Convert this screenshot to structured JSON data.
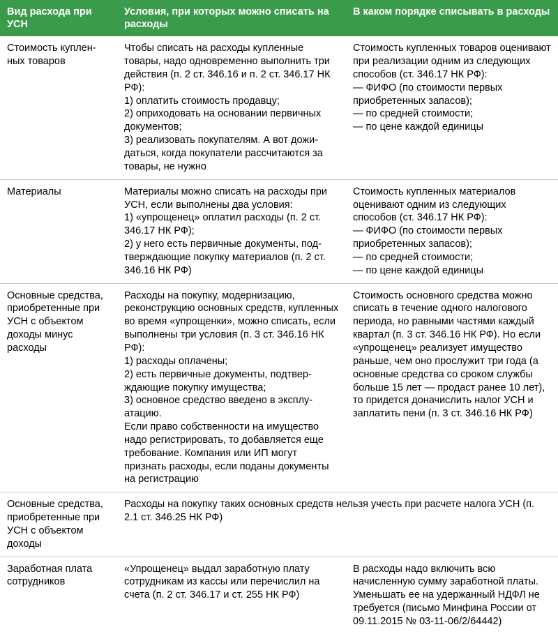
{
  "table": {
    "header_bg": "#3a9b4a",
    "header_color": "#ffffff",
    "border_color": "#c8c8c8",
    "text_color": "#000000",
    "font_size": 14.5,
    "columns": [
      {
        "label": "Вид расхода при УСН",
        "width": "21%"
      },
      {
        "label": "Условия, при которых можно списать на расходы",
        "width": "41%"
      },
      {
        "label": "В каком порядке списывать в расходы",
        "width": "38%"
      }
    ],
    "rows": [
      {
        "c1": "Стоимость куплен­ных товаров",
        "c2": "Чтобы списать на расходы купленные товары, надо одновременно выпол­нить три действия (п. 2 ст. 346.16 и п. 2 ст. 346.17 НК РФ):\n1) оплатить стоимость продавцу;\n2) оприходовать на основании первичных документов;\n3) реализовать покупателям. А вот дожи­даться, когда покупатели рассчитаются за товары, не нужно",
        "c3": "Стоимость купленных товаров оценивают при реализации одним из следующих способов (ст. 346.17 НК РФ):\n— ФИФО (по стоимости первых приобретенных запасов);\n— по средней стоимости;\n— по цене каждой единицы"
      },
      {
        "c1": "Материалы",
        "c2": "Материалы можно списать на расходы при УСН, если выполнены два условия:\n1) «упрощенец» оплатил расходы (п. 2 ст. 346.17 НК РФ);\n2) у него есть первичные документы, под­тверждающие покупку материалов (п. 2 ст. 346.16 НК РФ)",
        "c3": "Стоимость купленных материалов оценивают одним из следующих способов (ст. 346.17 НК РФ):\n— ФИФО (по стоимости первых приобретенных запасов);\n— по средней стоимости;\n— по цене каждой единицы"
      },
      {
        "c1": "Основные средст­ва, приобретенные при УСН с объек­том доходы минус расходы",
        "c2": "Расходы на покупку, модернизацию, реконструкцию основных средств, ку­пленных во время «упрощенки», можно списать, если выполнены три условия (п. 3 ст. 346.16 НК РФ):\n1) расходы оплачены;\n2) есть первичные документы, подтвер­ждающие покупку имущества;\n3) основное средство введено в эксплу­атацию.\nЕсли право собственности на имущество надо регистрировать, то добавляется еще требование. Компания или ИП могут признать расходы, если поданы докумен­ты на регистрацию",
        "c3": "Стоимость основного средства можно списать в течение одного налогового периода, но рав­ными частями каждый квартал (п. 3 ст. 346.16 НК РФ). Но если «упрощенец» реализует имущест­во раньше, чем оно прослужит три года (а основные средства со сро­ком службы больше 15 лет — про­даст ранее 10 лет), то придется доначислить налог УСН и запла­тить пени (п. 3 ст. 346.16 НК РФ)"
      },
      {
        "c1": "Основные средст­ва, приобретенные при УСН с объек­том доходы",
        "merged": "Расходы на покупку таких основных средств нельзя учесть при расчете налога УСН (п. 2.1 ст. 346.25 НК РФ)"
      },
      {
        "c1": "Заработная плата сотрудников",
        "c2": "«Упрощенец» выдал заработную плату сотрудникам из кассы или перечислил на счета (п. 2 ст. 346.17 и ст. 255 НК РФ)",
        "c3": "В расходы надо включить всю начисленную сумму заработной платы. Уменьшать ее на удержан­ный НДФЛ не требуется (письмо Минфина России от 09.11.2015 № 03-11-06/2/64442)"
      }
    ]
  }
}
